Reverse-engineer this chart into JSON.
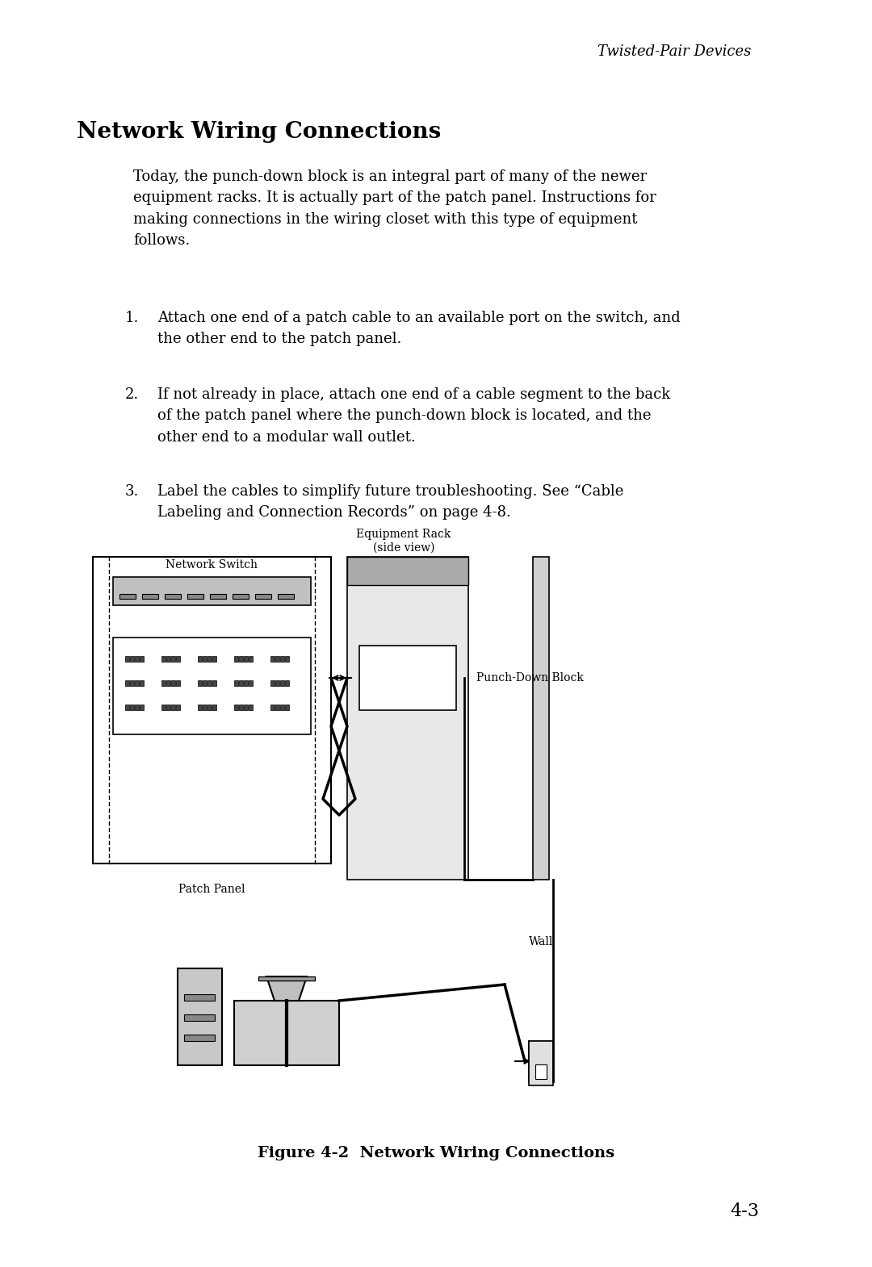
{
  "bg_color": "#ffffff",
  "header_text": "Twisted-Pair Devices",
  "section_title": "Network Wiring Connections",
  "body_text": "Today, the punch-down block is an integral part of many of the newer\nequipment racks. It is actually part of the patch panel. Instructions for\nmaking connections in the wiring closet with this type of equipment\nfollows.",
  "item1": "Attach one end of a patch cable to an available port on the switch, and\nthe other end to the patch panel.",
  "item2": "If not already in place, attach one end of a cable segment to the back\nof the patch panel where the punch-down block is located, and the\nother end to a modular wall outlet.",
  "item3": "Label the cables to simplify future troubleshooting. See “Cable\nLabeling and Connection Records” on page 4-8.",
  "figure_caption": "Figure 4-2  Network Wiring Connections",
  "page_number": "4-3",
  "label_network_switch": "Network Switch",
  "label_equipment_rack": "Equipment Rack\n(side view)",
  "label_patch_panel": "Patch Panel",
  "label_punch_down": "Punch-Down Block",
  "label_wall": "Wall"
}
